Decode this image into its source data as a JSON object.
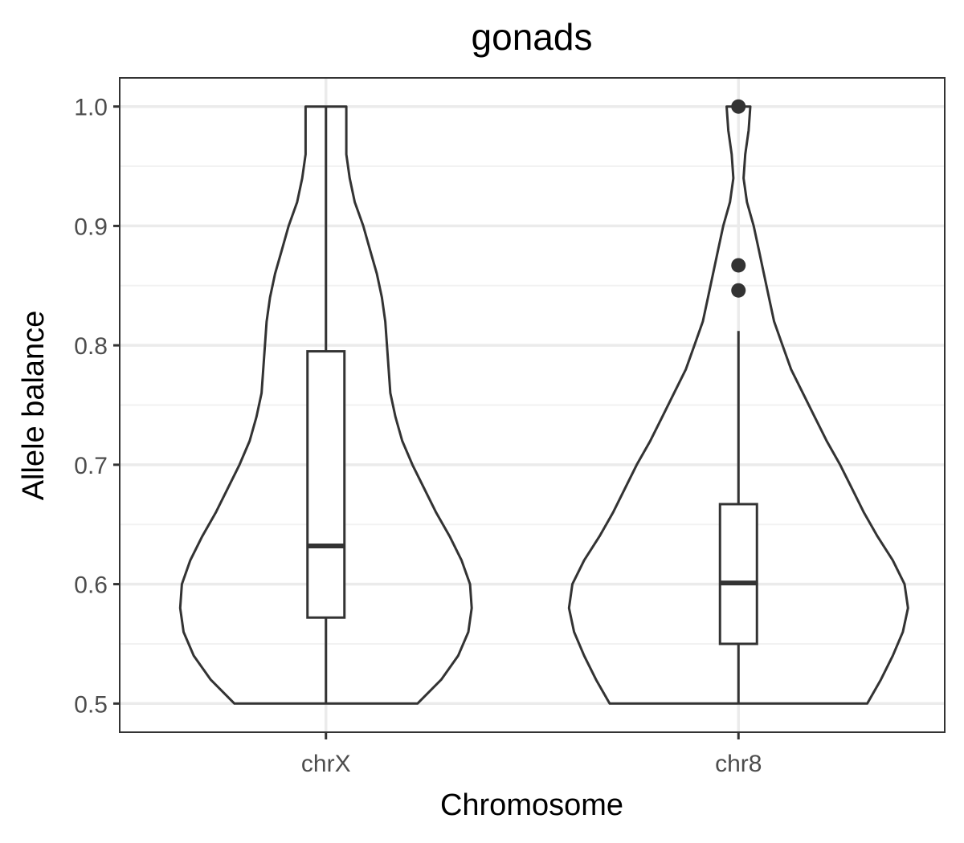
{
  "chart_data": {
    "type": "violin",
    "title": "gonads",
    "xlabel": "Chromosome",
    "ylabel": "Allele balance",
    "categories": [
      "chrX",
      "chr8"
    ],
    "ylim": [
      0.476,
      1.024
    ],
    "yticks": [
      0.5,
      0.6,
      0.7,
      0.8,
      0.9,
      1.0
    ],
    "ytick_labels": [
      "0.5",
      "0.6",
      "0.7",
      "0.8",
      "0.9",
      "1.0"
    ],
    "grid": true,
    "groups": [
      {
        "name": "chrX",
        "box": {
          "lower_whisker": 0.5,
          "q1": 0.572,
          "median": 0.632,
          "q3": 0.795,
          "upper_whisker": 1.0
        },
        "outliers": [],
        "violin_halfwidth": [
          [
            0.5,
            0.54
          ],
          [
            0.52,
            0.68
          ],
          [
            0.54,
            0.78
          ],
          [
            0.56,
            0.84
          ],
          [
            0.58,
            0.86
          ],
          [
            0.6,
            0.85
          ],
          [
            0.62,
            0.8
          ],
          [
            0.64,
            0.73
          ],
          [
            0.66,
            0.65
          ],
          [
            0.68,
            0.58
          ],
          [
            0.7,
            0.51
          ],
          [
            0.72,
            0.45
          ],
          [
            0.74,
            0.41
          ],
          [
            0.76,
            0.38
          ],
          [
            0.78,
            0.37
          ],
          [
            0.8,
            0.36
          ],
          [
            0.82,
            0.35
          ],
          [
            0.84,
            0.33
          ],
          [
            0.86,
            0.3
          ],
          [
            0.88,
            0.26
          ],
          [
            0.9,
            0.22
          ],
          [
            0.92,
            0.17
          ],
          [
            0.94,
            0.14
          ],
          [
            0.96,
            0.12
          ],
          [
            0.98,
            0.12
          ],
          [
            1.0,
            0.12
          ]
        ]
      },
      {
        "name": "chr8",
        "box": {
          "lower_whisker": 0.5,
          "q1": 0.55,
          "median": 0.601,
          "q3": 0.667,
          "upper_whisker": 0.812
        },
        "outliers": [
          0.846,
          0.867,
          1.0
        ],
        "violin_halfwidth": [
          [
            0.5,
            0.76
          ],
          [
            0.52,
            0.84
          ],
          [
            0.54,
            0.91
          ],
          [
            0.56,
            0.97
          ],
          [
            0.58,
            1.0
          ],
          [
            0.6,
            0.98
          ],
          [
            0.62,
            0.91
          ],
          [
            0.64,
            0.82
          ],
          [
            0.66,
            0.74
          ],
          [
            0.68,
            0.67
          ],
          [
            0.7,
            0.6
          ],
          [
            0.72,
            0.52
          ],
          [
            0.74,
            0.45
          ],
          [
            0.76,
            0.38
          ],
          [
            0.78,
            0.31
          ],
          [
            0.8,
            0.26
          ],
          [
            0.82,
            0.21
          ],
          [
            0.84,
            0.18
          ],
          [
            0.86,
            0.15
          ],
          [
            0.88,
            0.12
          ],
          [
            0.9,
            0.09
          ],
          [
            0.92,
            0.05
          ],
          [
            0.94,
            0.03
          ],
          [
            0.96,
            0.04
          ],
          [
            0.98,
            0.06
          ],
          [
            1.0,
            0.07
          ]
        ]
      }
    ]
  }
}
